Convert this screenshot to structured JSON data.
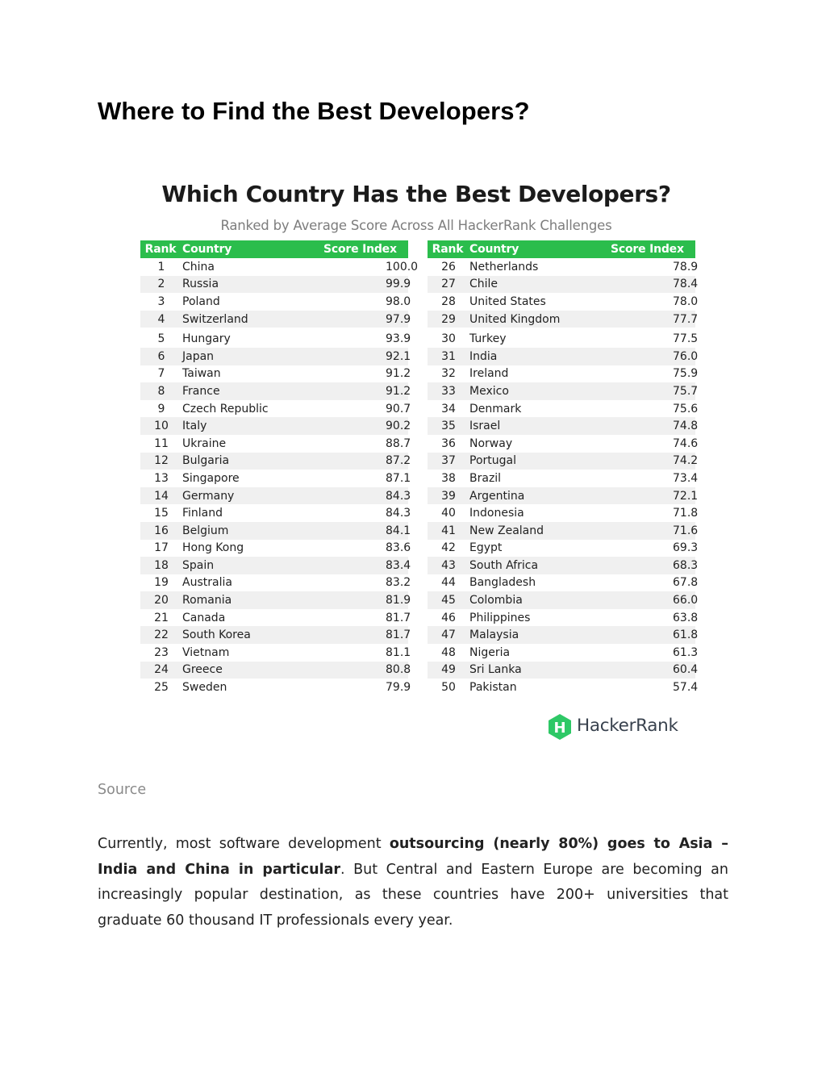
{
  "heading": "Where to Find the Best Developers?",
  "figure": {
    "title": "Which Country Has the Best Developers?",
    "subtitle": "Ranked by Average Score Across All HackerRank Challenges",
    "columns": [
      "Rank",
      "Country",
      "Score Index"
    ],
    "rows_left": [
      {
        "rank": "1",
        "country": "China",
        "score": "100.0"
      },
      {
        "rank": "2",
        "country": "Russia",
        "score": "99.9"
      },
      {
        "rank": "3",
        "country": "Poland",
        "score": "98.0"
      },
      {
        "rank": "4",
        "country": "Switzerland",
        "score": "97.9"
      },
      {
        "rank": "5",
        "country": "Hungary",
        "score": "93.9"
      },
      {
        "rank": "6",
        "country": "Japan",
        "score": "92.1"
      },
      {
        "rank": "7",
        "country": "Taiwan",
        "score": "91.2"
      },
      {
        "rank": "8",
        "country": "France",
        "score": "91.2"
      },
      {
        "rank": "9",
        "country": "Czech Republic",
        "score": "90.7"
      },
      {
        "rank": "10",
        "country": "Italy",
        "score": "90.2"
      },
      {
        "rank": "11",
        "country": "Ukraine",
        "score": "88.7"
      },
      {
        "rank": "12",
        "country": "Bulgaria",
        "score": "87.2"
      },
      {
        "rank": "13",
        "country": "Singapore",
        "score": "87.1"
      },
      {
        "rank": "14",
        "country": "Germany",
        "score": "84.3"
      },
      {
        "rank": "15",
        "country": "Finland",
        "score": "84.3"
      },
      {
        "rank": "16",
        "country": "Belgium",
        "score": "84.1"
      },
      {
        "rank": "17",
        "country": "Hong Kong",
        "score": "83.6"
      },
      {
        "rank": "18",
        "country": "Spain",
        "score": "83.4"
      },
      {
        "rank": "19",
        "country": "Australia",
        "score": "83.2"
      },
      {
        "rank": "20",
        "country": "Romania",
        "score": "81.9"
      },
      {
        "rank": "21",
        "country": "Canada",
        "score": "81.7"
      },
      {
        "rank": "22",
        "country": "South Korea",
        "score": "81.7"
      },
      {
        "rank": "23",
        "country": "Vietnam",
        "score": "81.1"
      },
      {
        "rank": "24",
        "country": "Greece",
        "score": "80.8"
      },
      {
        "rank": "25",
        "country": "Sweden",
        "score": "79.9"
      }
    ],
    "rows_right": [
      {
        "rank": "26",
        "country": "Netherlands",
        "score": "78.9"
      },
      {
        "rank": "27",
        "country": "Chile",
        "score": "78.4"
      },
      {
        "rank": "28",
        "country": "United States",
        "score": "78.0"
      },
      {
        "rank": "29",
        "country": "United Kingdom",
        "score": "77.7"
      },
      {
        "rank": "30",
        "country": "Turkey",
        "score": "77.5"
      },
      {
        "rank": "31",
        "country": "India",
        "score": "76.0"
      },
      {
        "rank": "32",
        "country": "Ireland",
        "score": "75.9"
      },
      {
        "rank": "33",
        "country": "Mexico",
        "score": "75.7"
      },
      {
        "rank": "34",
        "country": "Denmark",
        "score": "75.6"
      },
      {
        "rank": "35",
        "country": "Israel",
        "score": "74.8"
      },
      {
        "rank": "36",
        "country": "Norway",
        "score": "74.6"
      },
      {
        "rank": "37",
        "country": "Portugal",
        "score": "74.2"
      },
      {
        "rank": "38",
        "country": "Brazil",
        "score": "73.4"
      },
      {
        "rank": "39",
        "country": "Argentina",
        "score": "72.1"
      },
      {
        "rank": "40",
        "country": "Indonesia",
        "score": "71.8"
      },
      {
        "rank": "41",
        "country": "New Zealand",
        "score": "71.6"
      },
      {
        "rank": "42",
        "country": "Egypt",
        "score": "69.3"
      },
      {
        "rank": "43",
        "country": "South Africa",
        "score": "68.3"
      },
      {
        "rank": "44",
        "country": "Bangladesh",
        "score": "67.8"
      },
      {
        "rank": "45",
        "country": "Colombia",
        "score": "66.0"
      },
      {
        "rank": "46",
        "country": "Philippines",
        "score": "63.8"
      },
      {
        "rank": "47",
        "country": "Malaysia",
        "score": "61.8"
      },
      {
        "rank": "48",
        "country": "Nigeria",
        "score": "61.3"
      },
      {
        "rank": "49",
        "country": "Sri Lanka",
        "score": "60.4"
      },
      {
        "rank": "50",
        "country": "Pakistan",
        "score": "57.4"
      }
    ],
    "logo": {
      "text": "HackerRank",
      "mark": "H",
      "color": "#2ec866",
      "icon": "hackerrank-hexagon-icon"
    },
    "header_color": "#2bbd4c",
    "stripe_color": "#f0f0f0"
  },
  "source_link": "Source",
  "paragraph": {
    "t1": "Currently, most software development ",
    "b1": "outsourcing (nearly 80%) goes to Asia – India and China in particular",
    "t2": ". But Central and Eastern Europe are becoming an increasingly popular destination, as these countries have 200+ universities that graduate 60 thousand IT professionals every year."
  }
}
